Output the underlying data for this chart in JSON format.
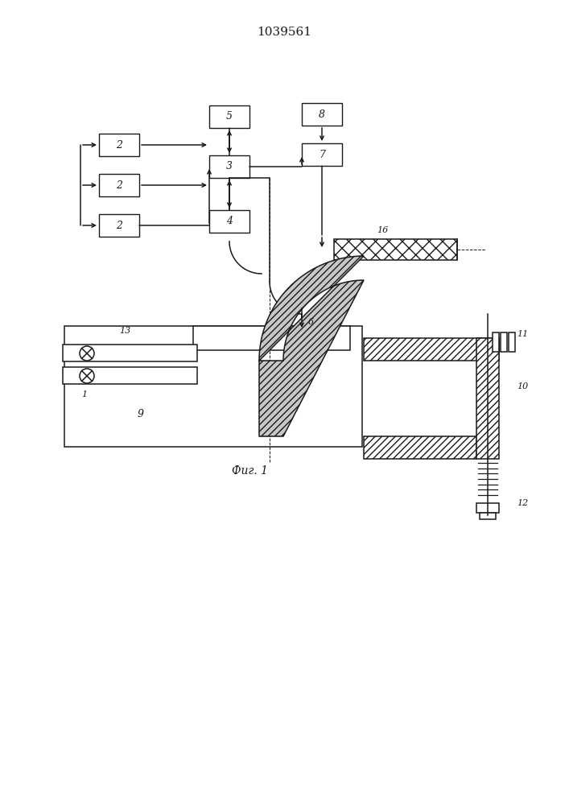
{
  "title": "1039561",
  "caption": "Фиг. 1",
  "line_color": "#1a1a1a",
  "lw": 1.0
}
